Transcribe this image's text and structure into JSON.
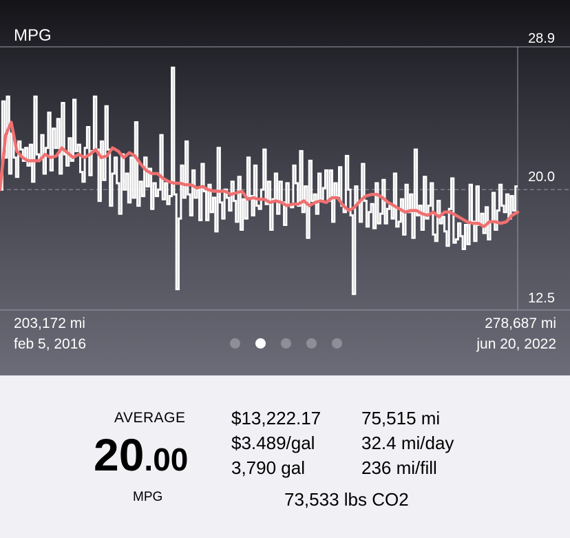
{
  "header": {
    "title": "MPG"
  },
  "chart_data": {
    "type": "line",
    "title": "MPG",
    "ylim": [
      12.5,
      28.9
    ],
    "yticks": [
      "28.9",
      "20.0",
      "12.5"
    ],
    "reference_line": 20.0,
    "x_start": {
      "odometer": "203,172 mi",
      "date": "feb 5, 2016"
    },
    "x_end": {
      "odometer": "278,687 mi",
      "date": "jun 20, 2022"
    },
    "series": [
      {
        "style": "white-steps",
        "values": [
          20.0,
          25.5,
          22.0,
          25.8,
          21.0,
          23.5,
          22.0,
          20.8,
          23.0,
          22.5,
          21.8,
          22.6,
          21.5,
          22.8,
          20.5,
          25.8,
          22.2,
          21.9,
          23.4,
          21.0,
          22.6,
          24.8,
          21.2,
          23.8,
          22.6,
          24.4,
          21.0,
          25.4,
          22.2,
          21.5,
          23.2,
          21.8,
          25.6,
          22.4,
          22.8,
          21.1,
          20.5,
          22.6,
          23.9,
          20.9,
          22.4,
          25.8,
          22.5,
          19.3,
          23.0,
          20.6,
          25.2,
          22.5,
          19.0,
          21.0,
          22.0,
          20.4,
          18.5,
          22.2,
          20.0,
          21.0,
          19.2,
          22.0,
          19.5,
          24.2,
          19.0,
          20.5,
          19.6,
          22.0,
          20.2,
          21.3,
          18.8,
          20.4,
          19.6,
          20.0,
          23.4,
          19.4,
          20.4,
          19.1,
          19.6,
          27.6,
          19.7,
          13.8,
          18.2,
          21.5,
          19.5,
          23.0,
          19.7,
          18.4,
          21.2,
          19.5,
          20.0,
          18.1,
          21.6,
          19.9,
          18.1,
          20.3,
          18.6,
          19.5,
          17.4,
          22.6,
          19.2,
          18.2,
          20.0,
          19.5,
          18.7,
          20.5,
          19.3,
          18.0,
          20.8,
          17.5,
          19.4,
          18.2,
          22.0,
          19.6,
          18.4,
          21.5,
          19.0,
          18.8,
          20.0,
          22.5,
          19.1,
          20.5,
          17.5,
          19.4,
          21.0,
          18.5,
          20.5,
          19.2,
          17.8,
          20.4,
          19.0,
          18.9,
          21.5,
          20.4,
          19.0,
          22.4,
          18.6,
          20.2,
          17.0,
          21.8,
          19.3,
          19.7,
          18.5,
          21.0,
          19.4,
          20.1,
          21.2,
          19.3,
          21.2,
          18.0,
          20.4,
          19.6,
          21.4,
          19.0,
          18.6,
          22.1,
          20.0,
          18.4,
          13.5,
          20.2,
          19.1,
          18.0,
          21.6,
          19.3,
          17.7,
          18.6,
          19.1,
          17.6,
          20.4,
          17.9,
          18.5,
          20.6,
          17.9,
          18.8,
          19.0,
          18.2,
          21.0,
          17.7,
          18.0,
          19.4,
          17.2,
          20.3,
          18.6,
          19.7,
          17.0,
          22.5,
          18.4,
          19.0,
          17.5,
          20.8,
          18.2,
          19.0,
          20.4,
          17.2,
          16.8,
          19.3,
          17.9,
          18.3,
          17.4,
          16.5,
          18.8,
          20.7,
          16.7,
          16.9,
          17.9,
          17.1,
          16.3,
          17.8,
          16.6,
          20.3,
          18.0,
          16.8,
          20.2,
          17.8,
          18.5,
          17.3,
          18.9,
          16.9,
          18.0,
          19.8,
          17.5,
          18.7,
          20.3,
          19.0,
          18.6,
          19.7,
          18.2,
          19.6,
          18.7,
          20.2
        ]
      },
      {
        "style": "red-average",
        "values": [
          20.0,
          23.4,
          24.2,
          22.4,
          22.0,
          21.8,
          21.8,
          21.8,
          22.2,
          22.0,
          22.1,
          22.6,
          22.3,
          22.0,
          22.2,
          22.0,
          22.2,
          22.5,
          22.0,
          22.1,
          22.6,
          22.4,
          22.0,
          22.3,
          22.1,
          21.6,
          21.2,
          21.0,
          21.0,
          20.7,
          20.5,
          20.4,
          20.4,
          20.3,
          20.3,
          20.1,
          20.2,
          20.0,
          19.9,
          19.9,
          19.9,
          19.7,
          19.8,
          19.9,
          19.4,
          19.5,
          19.4,
          19.4,
          19.2,
          19.3,
          19.2,
          19.0,
          19.1,
          19.1,
          19.3,
          19.0,
          19.2,
          19.3,
          19.2,
          19.5,
          19.5,
          19.0,
          18.7,
          18.9,
          19.3,
          19.6,
          19.7,
          19.7,
          19.5,
          19.2,
          19.0,
          18.8,
          18.6,
          18.7,
          18.7,
          18.5,
          18.4,
          18.6,
          18.3,
          18.6,
          18.6,
          18.4,
          18.2,
          18.0,
          17.9,
          17.9,
          17.7,
          18.0,
          18.0,
          17.9,
          18.0,
          18.4,
          18.6
        ]
      }
    ]
  },
  "pager": {
    "count": 5,
    "active": 1
  },
  "summary": {
    "average_label": "AVERAGE",
    "average_int": "20",
    "average_dec": ".00",
    "average_unit": "MPG",
    "cost": "$13,222.17",
    "price": "$3.489/gal",
    "gallons": "3,790 gal",
    "distance": "75,515 mi",
    "per_day": "32.4 mi/day",
    "per_fill": "236 mi/fill",
    "co2": "73,533 lbs CO2"
  },
  "colors": {
    "line": "#ffffff",
    "average": "#f07070",
    "gridline": "#9a9aa4"
  }
}
